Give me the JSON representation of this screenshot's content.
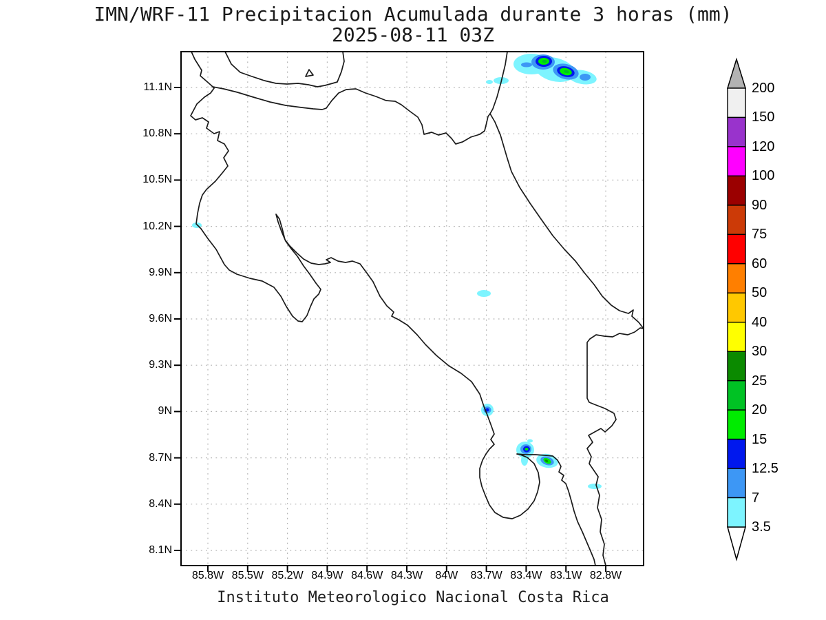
{
  "title": {
    "line1": "IMN/WRF-11 Precipitacion Acumulada durante 3 horas (mm)",
    "line2": "2025-08-11 03Z"
  },
  "footer": "Instituto Meteorologico Nacional Costa Rica",
  "axes": {
    "lat_ticks": [
      "11.1N",
      "10.8N",
      "10.5N",
      "10.2N",
      "9.9N",
      "9.6N",
      "9.3N",
      "9N",
      "8.7N",
      "8.4N",
      "8.1N"
    ],
    "lon_ticks": [
      "85.8W",
      "85.5W",
      "85.2W",
      "84.9W",
      "84.6W",
      "84.3W",
      "84W",
      "83.7W",
      "83.4W",
      "83.1W",
      "82.8W"
    ]
  },
  "colorbar": {
    "levels_top_to_bottom": [
      "200",
      "150",
      "120",
      "100",
      "90",
      "75",
      "60",
      "50",
      "40",
      "30",
      "25",
      "20",
      "15",
      "12.5",
      "7",
      "3.5"
    ],
    "segment_colors_top_to_bottom": [
      "#F0F0F0",
      "#9933CC",
      "#FF00FF",
      "#9B0000",
      "#CC3A07",
      "#FF0000",
      "#FF7F00",
      "#FFC800",
      "#FFFF00",
      "#0B8A00",
      "#00C224",
      "#00EC00",
      "#0018EE",
      "#3D97F5",
      "#7DF4FF"
    ],
    "over_arrow_color": "#B3B3B3",
    "under_arrow_color": "#FFFFFF",
    "units": "mm"
  },
  "palette": {
    "c1": "#7DF4FF",
    "c2": "#3D97F5",
    "c3": "#0018EE",
    "g1": "#00EC00",
    "g2": "#00C224",
    "g3": "#0B8A00"
  },
  "chart_data": {
    "type": "map-precipitation",
    "region_shown": "Costa Rica and southern Nicaragua",
    "lat_range_n": [
      8.0,
      11.33
    ],
    "lon_range_w": [
      86.0,
      82.51
    ],
    "grid": "dotted, 0.3 degree spacing",
    "precip_cells": [
      {
        "lat": 11.25,
        "lon_w": 83.27,
        "max_band_mm": "20-25",
        "note": "two-core cluster, Caribbean sea NE corner"
      },
      {
        "lat": 11.18,
        "lon_w": 83.1,
        "max_band_mm": "20-25",
        "note": "second core of NE cluster"
      },
      {
        "lat": 11.15,
        "lon_w": 83.58,
        "max_band_mm": "3.5-7",
        "note": "small specks west of NE cluster"
      },
      {
        "lat": 10.21,
        "lon_w": 85.88,
        "max_band_mm": "3.5-7",
        "note": "speck on Nicoya west coast"
      },
      {
        "lat": 9.76,
        "lon_w": 83.72,
        "max_band_mm": "3.5-7",
        "note": "small cell inland"
      },
      {
        "lat": 9.01,
        "lon_w": 83.69,
        "max_band_mm": "12.5-15",
        "note": "small cell on Pacific coast near Osa"
      },
      {
        "lat": 8.75,
        "lon_w": 83.4,
        "max_band_mm": "15-20",
        "note": "cell over Golfo Dulce head"
      },
      {
        "lat": 8.68,
        "lon_w": 83.24,
        "max_band_mm": "20-25",
        "note": "elongated cell near Golfito"
      },
      {
        "lat": 8.51,
        "lon_w": 82.88,
        "max_band_mm": "3.5-7",
        "note": "dash near Panama border"
      }
    ]
  }
}
